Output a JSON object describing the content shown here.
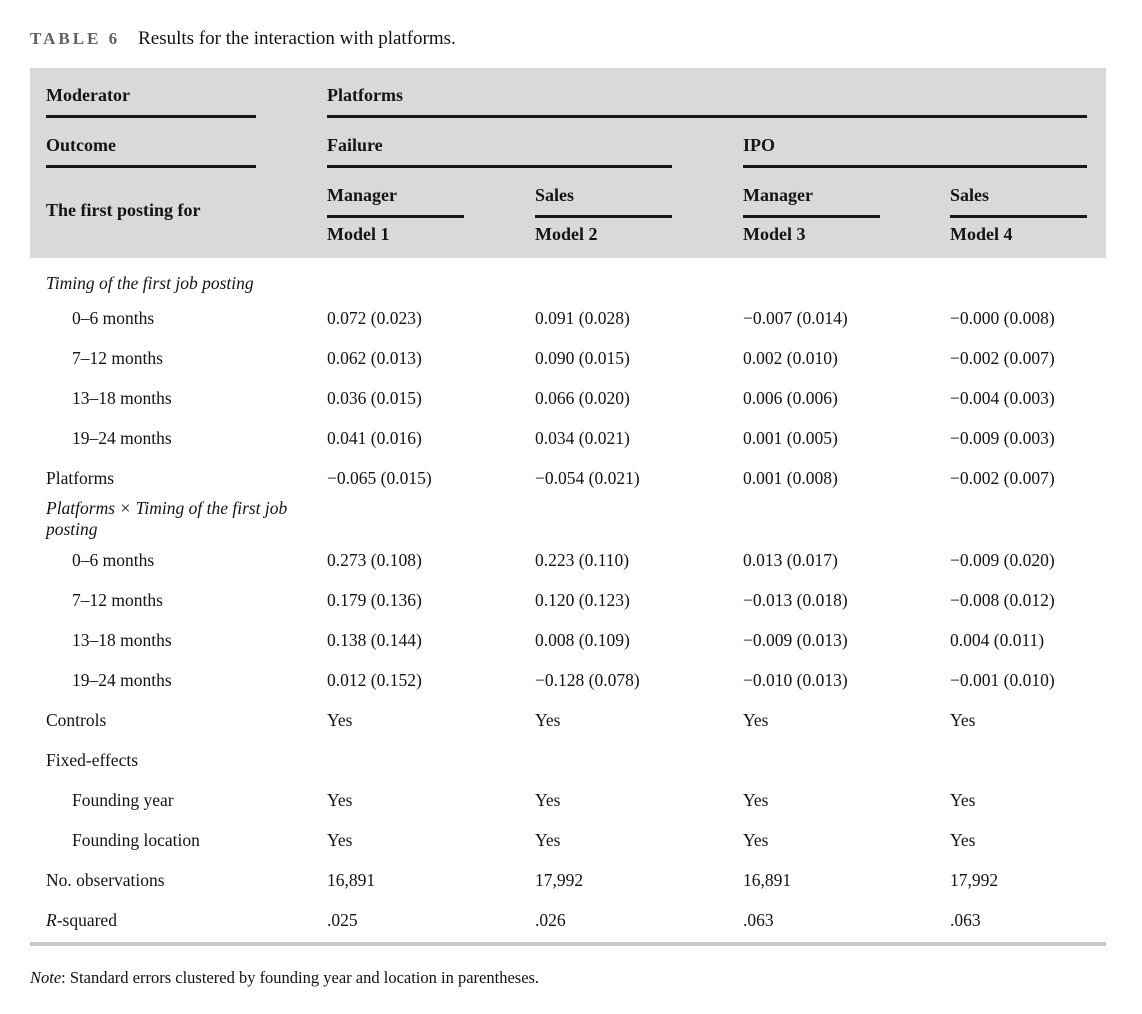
{
  "caption": {
    "label": "TABLE 6",
    "text": "Results for the interaction with platforms."
  },
  "table": {
    "header": {
      "moderator_label": "Moderator",
      "moderator_value": "Platforms",
      "outcome_label": "Outcome",
      "outcome_groups": [
        {
          "label": "Failure"
        },
        {
          "label": "IPO"
        }
      ],
      "posting_label": "The first posting for",
      "dv_columns": [
        "Manager",
        "Sales",
        "Manager",
        "Sales"
      ],
      "model_columns": [
        "Model 1",
        "Model 2",
        "Model 3",
        "Model 4"
      ]
    },
    "rows": [
      {
        "type": "section",
        "label": "Timing of the first job posting",
        "cells": [
          "",
          "",
          "",
          ""
        ]
      },
      {
        "type": "indent",
        "label": "0–6 months",
        "cells": [
          "0.072 (0.023)",
          "0.091 (0.028)",
          "−0.007 (0.014)",
          "−0.000 (0.008)"
        ]
      },
      {
        "type": "indent",
        "label": "7–12 months",
        "cells": [
          "0.062 (0.013)",
          "0.090 (0.015)",
          "0.002 (0.010)",
          "−0.002 (0.007)"
        ]
      },
      {
        "type": "indent",
        "label": "13–18 months",
        "cells": [
          "0.036 (0.015)",
          "0.066 (0.020)",
          "0.006 (0.006)",
          "−0.004 (0.003)"
        ]
      },
      {
        "type": "indent",
        "label": "19–24 months",
        "cells": [
          "0.041 (0.016)",
          "0.034 (0.021)",
          "0.001 (0.005)",
          "−0.009 (0.003)"
        ]
      },
      {
        "type": "plain",
        "label": "Platforms",
        "cells": [
          "−0.065 (0.015)",
          "−0.054 (0.021)",
          "0.001 (0.008)",
          "−0.002 (0.007)"
        ]
      },
      {
        "type": "section",
        "label": "Platforms × Timing of the first job posting",
        "cells": [
          "",
          "",
          "",
          ""
        ]
      },
      {
        "type": "indent",
        "label": "0–6 months",
        "cells": [
          "0.273 (0.108)",
          "0.223 (0.110)",
          "0.013 (0.017)",
          "−0.009 (0.020)"
        ]
      },
      {
        "type": "indent",
        "label": "7–12 months",
        "cells": [
          "0.179 (0.136)",
          "0.120 (0.123)",
          "−0.013 (0.018)",
          "−0.008 (0.012)"
        ]
      },
      {
        "type": "indent",
        "label": "13–18 months",
        "cells": [
          "0.138 (0.144)",
          "0.008 (0.109)",
          "−0.009 (0.013)",
          "0.004 (0.011)"
        ]
      },
      {
        "type": "indent",
        "label": "19–24 months",
        "cells": [
          "0.012 (0.152)",
          "−0.128 (0.078)",
          "−0.010 (0.013)",
          "−0.001 (0.010)"
        ]
      },
      {
        "type": "plain",
        "label": "Controls",
        "cells": [
          "Yes",
          "Yes",
          "Yes",
          "Yes"
        ]
      },
      {
        "type": "plain",
        "label": "Fixed-effects",
        "cells": [
          "",
          "",
          "",
          ""
        ]
      },
      {
        "type": "indent",
        "label": "Founding year",
        "cells": [
          "Yes",
          "Yes",
          "Yes",
          "Yes"
        ]
      },
      {
        "type": "indent",
        "label": "Founding location",
        "cells": [
          "Yes",
          "Yes",
          "Yes",
          "Yes"
        ]
      },
      {
        "type": "plain",
        "label": "No. observations",
        "cells": [
          "16,891",
          "17,992",
          "16,891",
          "17,992"
        ]
      },
      {
        "type": "rsq",
        "label": "R-squared",
        "cells": [
          ".025",
          ".026",
          ".063",
          ".063"
        ]
      }
    ]
  },
  "note": {
    "prefix": "Note",
    "text": ": Standard errors clustered by founding year and location in parentheses."
  },
  "colors": {
    "header_bg": "#d9d9d9",
    "header_rule": "#161616",
    "bottom_rule": "#c9c9c9",
    "caption_label": "#606060"
  }
}
